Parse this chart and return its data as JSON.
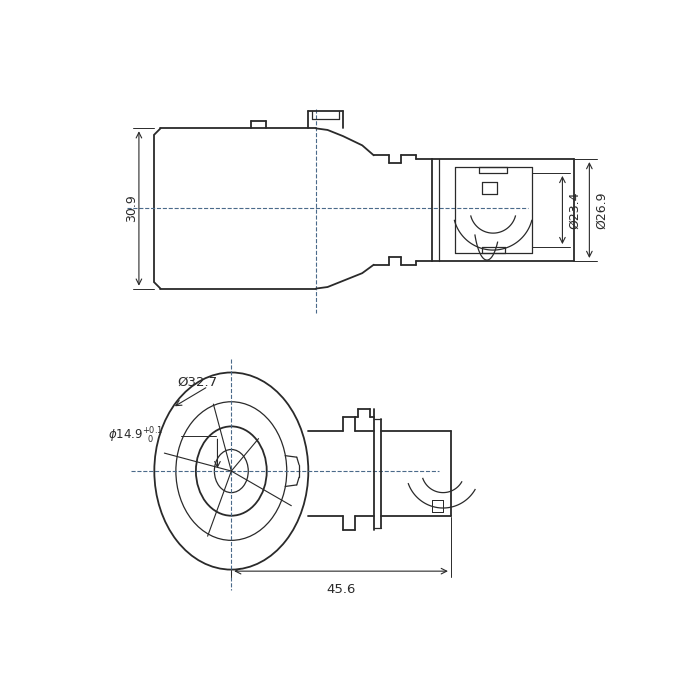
{
  "bg_color": "#ffffff",
  "line_color": "#2a2a2a",
  "dim_color": "#2a2a2a",
  "dashed_color": "#4a6a8a",
  "dimensions": {
    "height_30_9": "30.9",
    "dia_23_4": "Ø23.4",
    "dia_26_9": "Ø26.9",
    "dia_32_7": "Ø32.7",
    "dia_14_9": "×14.9+0.1\n         0",
    "length_45_6": "45.6"
  }
}
